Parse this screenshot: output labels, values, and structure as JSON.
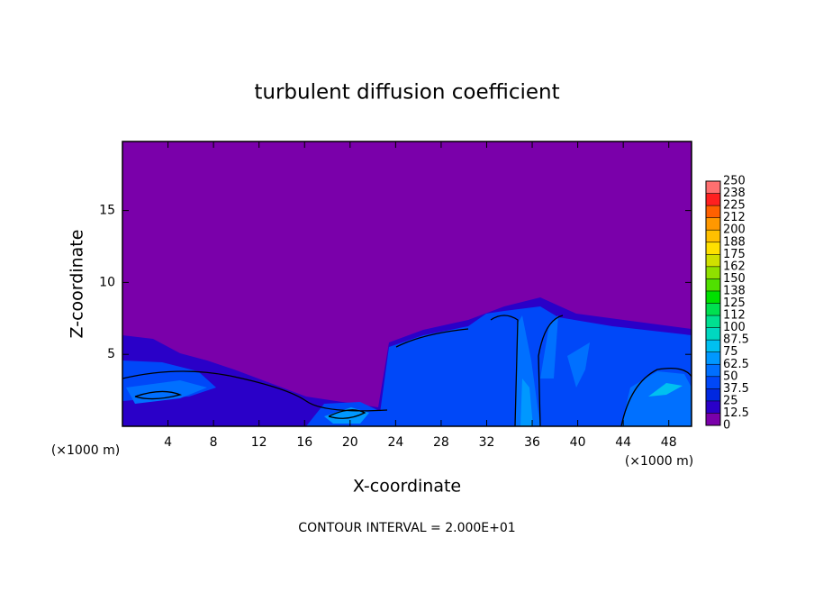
{
  "chart_data": {
    "type": "contour",
    "title": "turbulent diffusion coefficient",
    "x_label": "X-coordinate",
    "y_label": "Z-coordinate",
    "x_unit": "(×1000 m)",
    "y_unit": "(×1000 m)",
    "annotation": "CONTOUR INTERVAL = 2.000E+01",
    "xlim": [
      0,
      50
    ],
    "xticks": [
      4,
      8,
      12,
      16,
      20,
      24,
      28,
      32,
      36,
      40,
      44,
      48
    ],
    "ylim": [
      0,
      19.8
    ],
    "yticks": [
      5,
      10,
      15
    ],
    "colorbar": {
      "levels": [
        0,
        12.5,
        25,
        37.5,
        50,
        62.5,
        75,
        87.5,
        100,
        {
          "value": 112.5,
          "label": "112"
        },
        125,
        {
          "value": 137.5,
          "label": "138"
        },
        150,
        {
          "value": 162.5,
          "label": "162"
        },
        175,
        {
          "value": 187.5,
          "label": "188"
        },
        200,
        {
          "value": 212.5,
          "label": "212"
        },
        225,
        {
          "value": 237.5,
          "label": "238"
        },
        250
      ],
      "colors": [
        "#7a00aa",
        "#2a00c8",
        "#0028e0",
        "#0048f8",
        "#0070ff",
        "#0098ff",
        "#00c0f0",
        "#00d8c0",
        "#00e090",
        "#00e050",
        "#00e000",
        "#50e000",
        "#90e000",
        "#d0e000",
        "#ffe000",
        "#ffc000",
        "#ff9800",
        "#ff6000",
        "#ff2020",
        "#ff7070"
      ]
    }
  }
}
